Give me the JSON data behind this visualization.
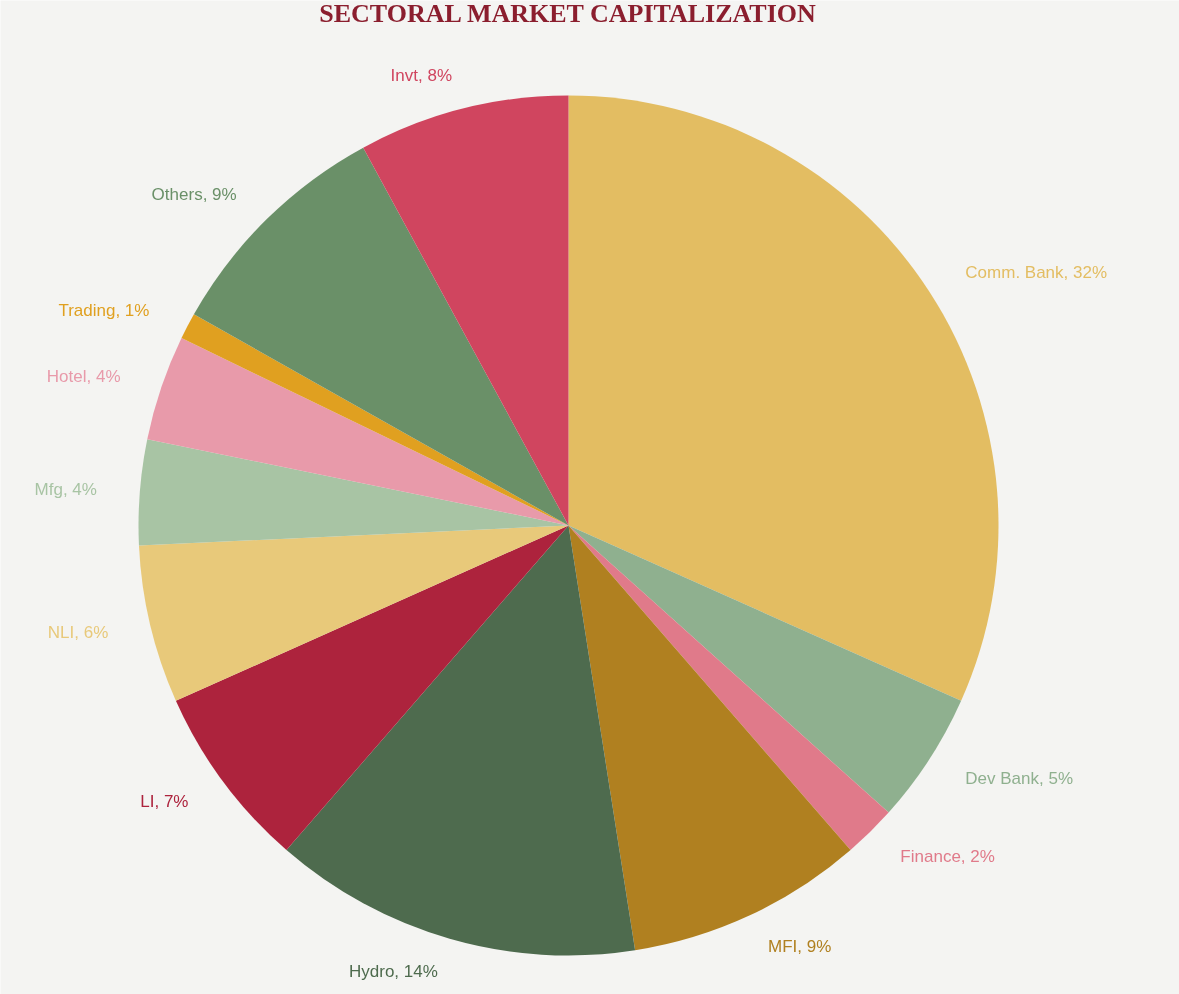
{
  "chart_data": {
    "type": "pie",
    "title": "SECTORAL MARKET CAPITALIZATION",
    "categories": [
      "Comm. Bank",
      "Dev Bank",
      "Finance",
      "MFI",
      "Hydro",
      "LI",
      "NLI",
      "Mfg",
      "Hotel",
      "Trading",
      "Others",
      "Invt"
    ],
    "values": [
      32,
      5,
      2,
      9,
      14,
      7,
      6,
      4,
      4,
      1,
      9,
      8
    ],
    "value_labels": [
      "32%",
      "5%",
      "2%",
      "9%",
      "14%",
      "7%",
      "6%",
      "4%",
      "4%",
      "1%",
      "9%",
      "8%"
    ],
    "colors": [
      "#e3bd62",
      "#8fb08f",
      "#e07a8a",
      "#b08020",
      "#4e6b4e",
      "#ad233d",
      "#e8c97a",
      "#a8c4a4",
      "#e89aaa",
      "#e0a020",
      "#6a9068",
      "#d0455f"
    ]
  }
}
